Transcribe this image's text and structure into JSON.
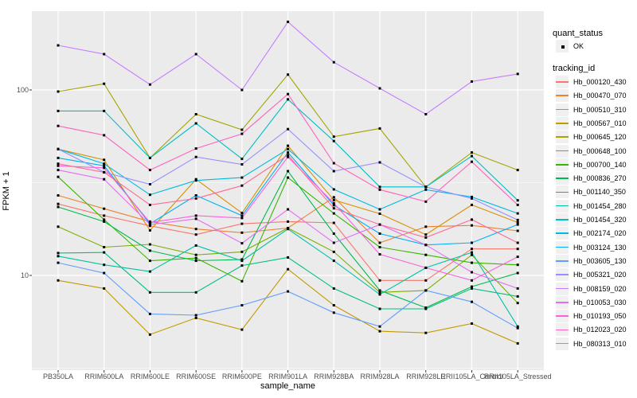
{
  "chart_data": {
    "type": "line",
    "title": "",
    "xlabel": "sample_name",
    "ylabel": "FPKM + 1",
    "y_scale": "log10",
    "y_ticks": [
      "10",
      "100"
    ],
    "y_tick_values": [
      10,
      100
    ],
    "y_minor_gridline_values": [
      3.162,
      31.62
    ],
    "ylim": [
      3.08,
      266
    ],
    "grid": true,
    "panel_bg": "#EBEBEB",
    "grid_color": "#FFFFFF",
    "point_color": "#000000",
    "point_shape": "square",
    "legend_position": "right",
    "categories": [
      "PB350LA",
      "RRIM600LA",
      "RRIM600LE",
      "RRIM600SE",
      "RRIM600PE",
      "RRIM901LA",
      "RRIM928BA",
      "RRIM928LA",
      "RRIM928LE",
      "RRII105LA_Control",
      "RRII105LA_Stressed"
    ],
    "legend": {
      "quant_status_title": "quant_status",
      "quant_status_items": [
        {
          "label": "OK",
          "marker": "black-square"
        }
      ],
      "tracking_title": "tracking_id"
    },
    "series": [
      {
        "name": "Hb_000120_430",
        "color": "#F8766D",
        "values": [
          24.3,
          21,
          18.5,
          16.6,
          19,
          19.5,
          19.2,
          9.4,
          9.4,
          13.9,
          13.9
        ]
      },
      {
        "name": "Hb_000470_070",
        "color": "#EA8331",
        "values": [
          27,
          22.9,
          19.5,
          17.8,
          17,
          18,
          26.4,
          15,
          18.3,
          18.6,
          17.4
        ]
      },
      {
        "name": "Hb_000510_310",
        "color": "#D89000",
        "values": [
          48,
          42,
          17.5,
          33,
          21.7,
          50,
          25.5,
          21.5,
          16.6,
          24,
          19.3
        ]
      },
      {
        "name": "Hb_000567_010",
        "color": "#C09B00",
        "values": [
          9.4,
          8.5,
          4.8,
          5.9,
          5.1,
          10.8,
          6.9,
          5.0,
          4.9,
          5.5,
          4.3
        ]
      },
      {
        "name": "Hb_000645_120",
        "color": "#A3A500",
        "values": [
          98,
          108,
          43,
          74,
          61,
          121,
          56,
          62,
          30,
          46,
          37
        ]
      },
      {
        "name": "Hb_000648_100",
        "color": "#7CAE00",
        "values": [
          18.3,
          14.2,
          14.7,
          12.9,
          13.4,
          18,
          13.4,
          8.1,
          8.3,
          12.9,
          7.1
        ]
      },
      {
        "name": "Hb_000700_140",
        "color": "#39B600",
        "values": [
          34,
          20,
          12,
          12.4,
          9.3,
          33.7,
          21.6,
          14.2,
          12.9,
          11.7,
          11.4
        ]
      },
      {
        "name": "Hb_000836_270",
        "color": "#00BB4E",
        "values": [
          23.4,
          19.5,
          13.6,
          12,
          12.2,
          36.5,
          16.8,
          8.3,
          6.7,
          8.7,
          10.3
        ]
      },
      {
        "name": "Hb_001140_350",
        "color": "#00BF7D",
        "values": [
          13.2,
          13.3,
          8.1,
          8.1,
          11.3,
          12.5,
          8.5,
          6.6,
          6.6,
          8.5,
          7.7
        ]
      },
      {
        "name": "Hb_001454_280",
        "color": "#00C1A3",
        "values": [
          12.7,
          11.4,
          10.5,
          14.5,
          12,
          17.8,
          12,
          7.9,
          11,
          13.3,
          5.3
        ]
      },
      {
        "name": "Hb_001454_320",
        "color": "#00BFC4",
        "values": [
          77,
          77,
          43,
          66,
          42.5,
          89,
          53,
          30,
          30,
          44,
          25.4
        ]
      },
      {
        "name": "Hb_002174_020",
        "color": "#00BAE0",
        "values": [
          48,
          40,
          27.2,
          32.5,
          33.7,
          48,
          29.1,
          22.7,
          29,
          26.5,
          21.6
        ]
      },
      {
        "name": "Hb_003124_130",
        "color": "#00B0F6",
        "values": [
          43,
          39,
          19,
          27,
          21,
          46,
          23.9,
          16.8,
          14.6,
          15,
          18.8
        ]
      },
      {
        "name": "Hb_003605_130",
        "color": "#619CFF",
        "values": [
          11.7,
          10.3,
          6.2,
          6.1,
          6.9,
          8.2,
          6.3,
          5.3,
          8.3,
          7.2,
          5.2
        ]
      },
      {
        "name": "Hb_005321_020",
        "color": "#9590FF",
        "values": [
          48,
          36,
          31,
          43.5,
          39.7,
          61.5,
          36.5,
          40.7,
          30,
          26,
          19.9
        ]
      },
      {
        "name": "Hb_008159_020",
        "color": "#C77CFF",
        "values": [
          174,
          156,
          107,
          156,
          100,
          233,
          141,
          102,
          74,
          111,
          122
        ]
      },
      {
        "name": "Hb_010053_030",
        "color": "#E76BF3",
        "values": [
          37,
          33,
          18.8,
          20.2,
          14.9,
          22.7,
          15,
          18.8,
          14.6,
          10.4,
          8.5
        ]
      },
      {
        "name": "Hb_010193_050",
        "color": "#FA62DB",
        "values": [
          39,
          38,
          19.3,
          21,
          20.4,
          43.5,
          24.5,
          13,
          11,
          9.4,
          12.6
        ]
      },
      {
        "name": "Hb_012023_020",
        "color": "#FF62BC",
        "values": [
          64,
          57,
          37,
          48.3,
          58,
          95,
          40.3,
          29,
          25,
          41,
          24
        ]
      },
      {
        "name": "Hb_080313_010",
        "color": "#FF6A98",
        "values": [
          40,
          36,
          24,
          26,
          30.5,
          44.5,
          23,
          18.8,
          16,
          20,
          15
        ]
      }
    ]
  }
}
